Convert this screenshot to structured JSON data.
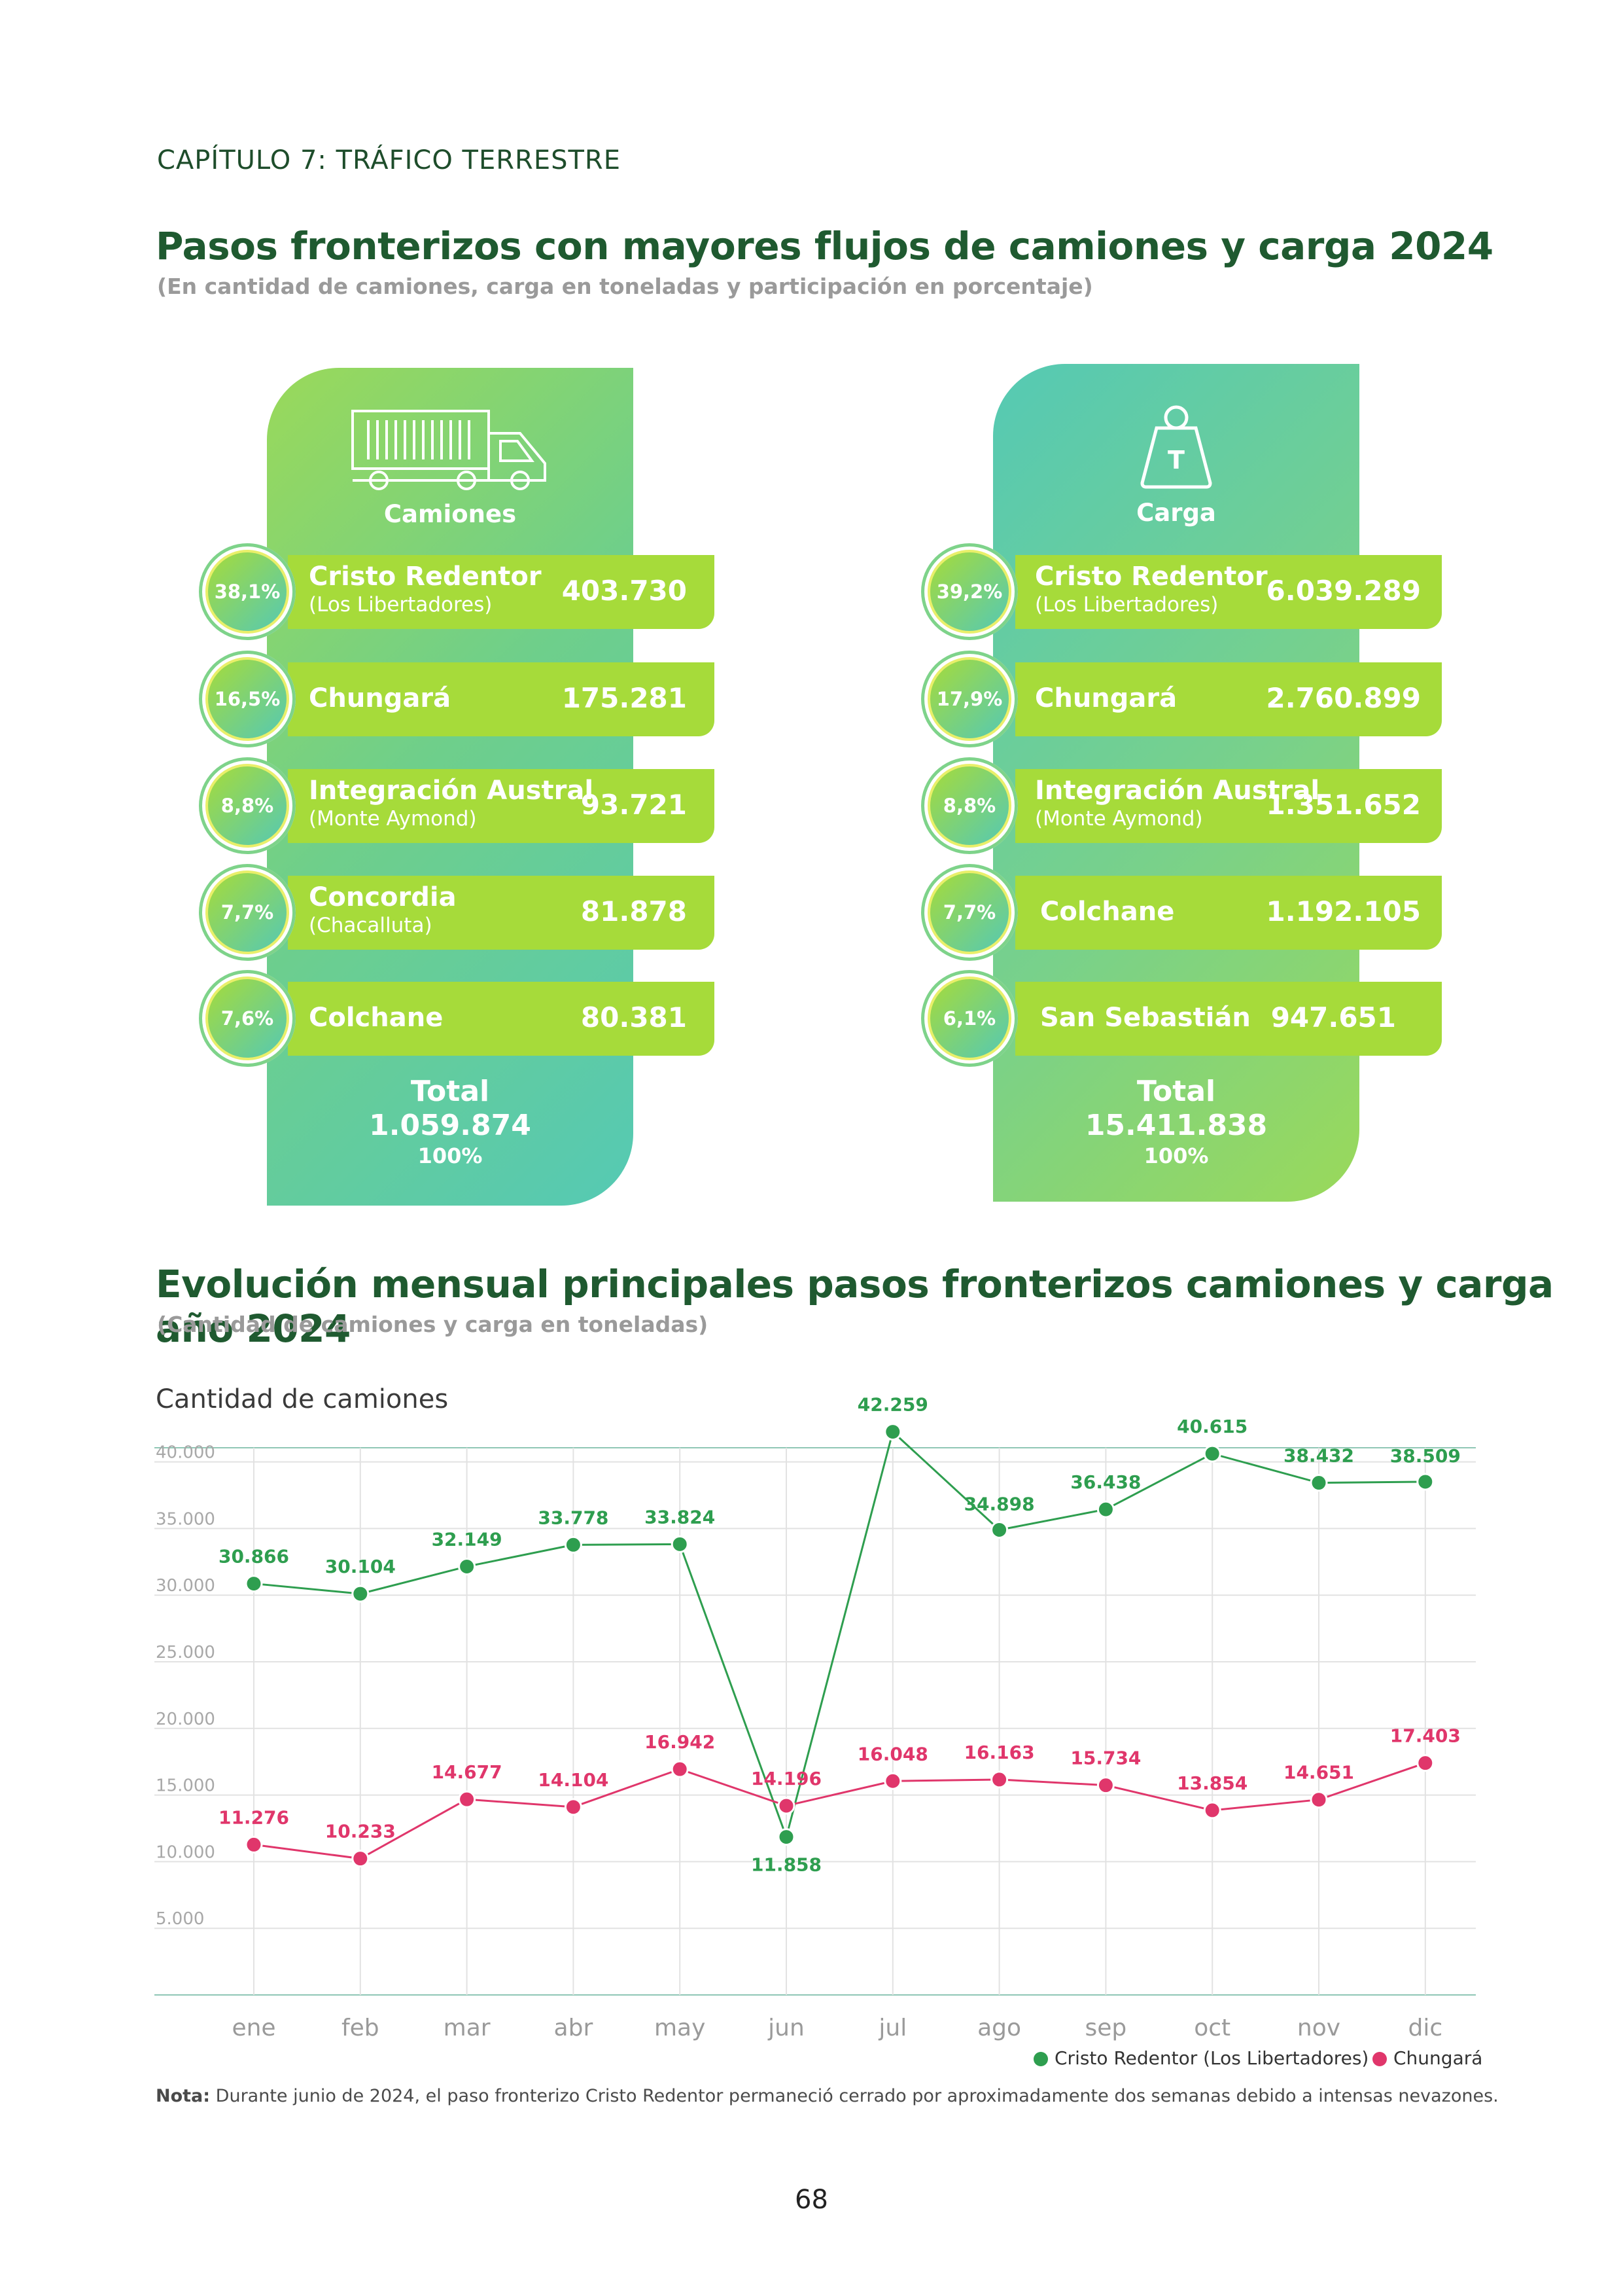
{
  "chapter": "CAPÍTULO 7: TRÁFICO TERRESTRE",
  "section1": {
    "title": "Pasos fronterizos con mayores flujos de camiones y carga 2024",
    "subtitle": "(En cantidad de camiones, carga en toneladas y participación en porcentaje)"
  },
  "trucks_panel": {
    "icon": "truck-icon",
    "title": "Camiones",
    "rows": [
      {
        "pct": "38,1%",
        "name": "Cristo Redentor",
        "sub": "(Los Libertadores)",
        "value": "403.730"
      },
      {
        "pct": "16,5%",
        "name": "Chungará",
        "sub": "",
        "value": "175.281"
      },
      {
        "pct": "8,8%",
        "name": "Integración Austral",
        "sub": "(Monte Aymond)",
        "value": "93.721"
      },
      {
        "pct": "7,7%",
        "name": "Concordia",
        "sub": "(Chacalluta)",
        "value": "81.878"
      },
      {
        "pct": "7,6%",
        "name": "Colchane",
        "sub": "",
        "value": "80.381"
      }
    ],
    "total_label": "Total",
    "total_value": "1.059.874",
    "total_pct": "100%"
  },
  "cargo_panel": {
    "icon": "weight-icon",
    "icon_letter": "T",
    "title": "Carga",
    "rows": [
      {
        "pct": "39,2%",
        "name": "Cristo Redentor",
        "sub": "(Los Libertadores)",
        "value": "6.039.289"
      },
      {
        "pct": "17,9%",
        "name": "Chungará",
        "sub": "",
        "value": "2.760.899"
      },
      {
        "pct": "8,8%",
        "name": "Integración Austral",
        "sub": "(Monte Aymond)",
        "value": "1.351.652"
      },
      {
        "pct": "7,7%",
        "name": "Colchane",
        "sub": "",
        "value": "1.192.105"
      },
      {
        "pct": "6,1%",
        "name": "San Sebastián",
        "sub": "",
        "value": "947.651"
      }
    ],
    "total_label": "Total",
    "total_value": "15.411.838",
    "total_pct": "100%"
  },
  "section2": {
    "title": "Evolución mensual principales pasos fronterizos camiones y carga año 2024",
    "subtitle": "(Cantidad de camiones y carga en toneladas)",
    "chart_title": "Cantidad de camiones"
  },
  "chart_data": {
    "type": "line",
    "title": "Cantidad de camiones",
    "categories": [
      "ene",
      "feb",
      "mar",
      "abr",
      "may",
      "jun",
      "jul",
      "ago",
      "sep",
      "oct",
      "nov",
      "dic"
    ],
    "ylim": [
      0,
      45000
    ],
    "yticks": [
      5000,
      10000,
      15000,
      20000,
      25000,
      30000,
      35000,
      40000
    ],
    "ytick_labels": [
      "5.000",
      "10.000",
      "15.000",
      "20.000",
      "25.000",
      "30.000",
      "35.000",
      "40.000"
    ],
    "grid": true,
    "legend": "bottom-right",
    "series": [
      {
        "name": "Cristo Redentor (Los Libertadores)",
        "color": "#2e9e4f",
        "values": [
          30866,
          30104,
          32149,
          33778,
          33824,
          11858,
          42259,
          34898,
          36438,
          40615,
          38432,
          38509
        ],
        "labels": [
          "30.866",
          "30.104",
          "32.149",
          "33.778",
          "33.824",
          "11.858",
          "42.259",
          "34.898",
          "36.438",
          "40.615",
          "38.432",
          "38.509"
        ]
      },
      {
        "name": "Chungará",
        "color": "#e0366b",
        "values": [
          11276,
          10233,
          14677,
          14104,
          16942,
          14196,
          16048,
          16163,
          15734,
          13854,
          14651,
          17403
        ],
        "labels": [
          "11.276",
          "10.233",
          "14.677",
          "14.104",
          "16.942",
          "14.196",
          "16.048",
          "16.163",
          "15.734",
          "13.854",
          "14.651",
          "17.403"
        ]
      }
    ]
  },
  "note": {
    "label": "Nota:",
    "text": " Durante junio de 2024, el paso fronterizo Cristo Redentor permaneció cerrado por aproximadamente dos semanas debido a intensas nevazones."
  },
  "page_number": "68",
  "colors": {
    "dark_green": "#1f5a30",
    "lime": "#a6db3a",
    "teal": "#55c9b4",
    "green_series": "#2e9e4f",
    "pink_series": "#e0366b"
  }
}
